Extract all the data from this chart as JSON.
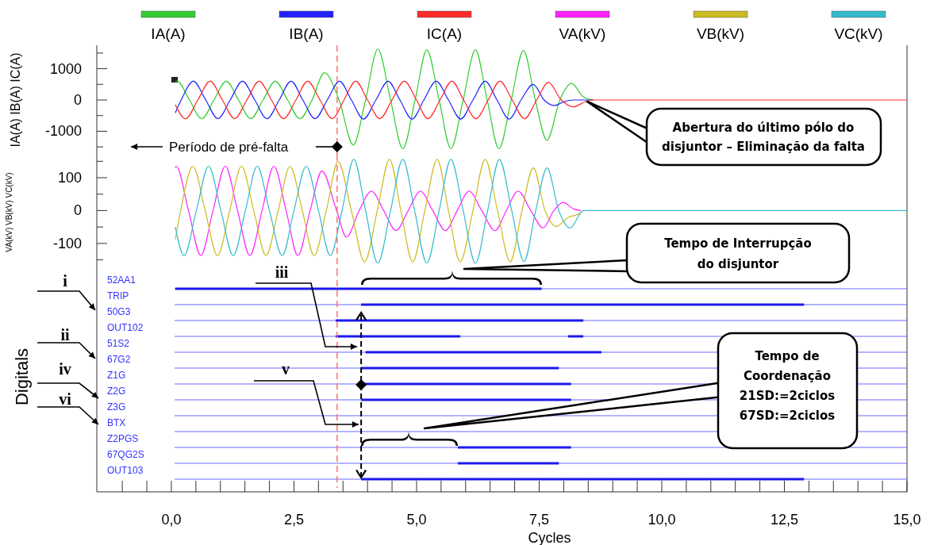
{
  "chart_data": [
    {
      "type": "line",
      "ylabel": "IA(A) IB(A) IC(A)",
      "legend": "top",
      "tick_labels": "y",
      "xlim": [
        -1.52,
        15
      ],
      "ylim": [
        -1750,
        1750
      ],
      "yticks": [
        {
          "value": -1500,
          "label": null
        },
        -1000,
        {
          "value": -500,
          "label": null
        },
        0,
        {
          "value": 500,
          "label": null
        },
        1000,
        {
          "value": 1500,
          "label": null
        }
      ],
      "ref_lines": [
        {
          "axis": "x",
          "value": 3.38,
          "color": "#ff7070",
          "line_style": "dashed"
        }
      ],
      "annotations": [
        "Período de pré-falta",
        "Abertura do último pólo do disjuntor – Eliminação da falta"
      ],
      "series": [
        {
          "name": "IA(A)",
          "color": "#33cc33",
          "x": [
            0.08,
            0.12,
            0.37,
            0.62,
            0.87,
            1.12,
            1.37,
            1.62,
            1.87,
            2.12,
            2.37,
            2.62,
            2.87,
            3.12,
            3.42,
            3.71,
            3.96,
            4.21,
            4.47,
            4.72,
            4.97,
            5.21,
            5.46,
            5.7,
            5.95,
            6.2,
            6.44,
            6.68,
            6.93,
            7.18,
            7.42,
            7.66,
            7.92,
            8.16,
            8.4,
            8.6
          ],
          "values": [
            590,
            600,
            0,
            -600,
            0,
            600,
            0,
            -600,
            0,
            600,
            0,
            -600,
            0,
            870,
            0,
            -1440,
            0,
            1630,
            0,
            -1560,
            0,
            1600,
            0,
            -1560,
            0,
            1600,
            0,
            -1560,
            0,
            1580,
            0,
            -1290,
            0,
            530,
            100,
            0
          ]
        },
        {
          "name": "IB(A)",
          "color": "#2222ff",
          "x": [
            0.08,
            0.2,
            0.45,
            0.7,
            0.95,
            1.2,
            1.45,
            1.7,
            1.95,
            2.2,
            2.44,
            2.68,
            2.93,
            3.18,
            3.43,
            3.67,
            3.92,
            4.17,
            4.42,
            4.66,
            4.91,
            5.15,
            5.4,
            5.65,
            5.9,
            6.15,
            6.4,
            6.64,
            6.89,
            7.13,
            7.38,
            7.6,
            7.81,
            8.0,
            8.2,
            8.6
          ],
          "values": [
            -410,
            0,
            600,
            0,
            -600,
            0,
            600,
            0,
            -600,
            0,
            600,
            0,
            -600,
            0,
            600,
            0,
            -610,
            0,
            600,
            0,
            -610,
            0,
            600,
            0,
            -610,
            0,
            600,
            0,
            -610,
            0,
            500,
            0,
            -180,
            -60,
            0,
            0
          ]
        },
        {
          "name": "IC(A)",
          "color": "#ff2a2a",
          "x": [
            0.08,
            0.29,
            0.54,
            0.79,
            1.04,
            1.29,
            1.54,
            1.79,
            2.04,
            2.29,
            2.54,
            2.78,
            3.03,
            3.28,
            3.52,
            3.76,
            4.0,
            4.25,
            4.5,
            4.75,
            5.0,
            5.23,
            5.48,
            5.72,
            5.96,
            6.21,
            6.46,
            6.7,
            6.95,
            7.2,
            7.45,
            7.69,
            7.95,
            8.2,
            8.45,
            8.6,
            15
          ],
          "values": [
            -150,
            -600,
            0,
            600,
            0,
            -600,
            0,
            600,
            0,
            -600,
            0,
            600,
            0,
            -600,
            0,
            600,
            0,
            -600,
            0,
            600,
            0,
            -600,
            0,
            600,
            0,
            -600,
            0,
            600,
            0,
            -600,
            0,
            560,
            0,
            -220,
            -50,
            0,
            0
          ]
        }
      ]
    },
    {
      "type": "line",
      "ylabel": "VA(kV) VB(kV) VC(kV)",
      "legend": "top",
      "tick_labels": "y",
      "xlim": [
        -1.52,
        15
      ],
      "ylim": [
        -180,
        170
      ],
      "yticks": [
        {
          "value": -150,
          "label": null
        },
        -100,
        {
          "value": -50,
          "label": null
        },
        0,
        {
          "value": 50,
          "label": null
        },
        100,
        {
          "value": 150,
          "label": null
        }
      ],
      "ref_lines": [
        {
          "axis": "x",
          "value": 3.38,
          "color": "#ff7070",
          "line_style": "dashed"
        }
      ],
      "series": [
        {
          "name": "VA(kV)",
          "color": "#ff22ff",
          "x": [
            0.08,
            0.1,
            0.35,
            0.6,
            0.85,
            1.1,
            1.35,
            1.6,
            1.85,
            2.09,
            2.34,
            2.58,
            2.83,
            3.07,
            3.37,
            3.57,
            3.83,
            4.08,
            4.33,
            4.58,
            4.83,
            5.08,
            5.33,
            5.59,
            5.83,
            6.07,
            6.33,
            6.6,
            6.83,
            7.07,
            7.33,
            7.58,
            7.8,
            7.99,
            8.2,
            8.35
          ],
          "values": [
            130,
            135,
            0,
            -137,
            0,
            135,
            0,
            -137,
            0,
            135,
            0,
            -137,
            0,
            120,
            0,
            -81,
            0,
            59,
            0,
            -61,
            0,
            59,
            0,
            -61,
            0,
            59,
            0,
            -61,
            0,
            59,
            0,
            -53,
            0,
            25,
            5,
            0
          ]
        },
        {
          "name": "VB(kV)",
          "color": "#ccbb22",
          "x": [
            0.08,
            0.19,
            0.44,
            0.69,
            0.94,
            1.19,
            1.43,
            1.68,
            1.93,
            2.18,
            2.42,
            2.67,
            2.91,
            3.16,
            3.4,
            3.67,
            3.94,
            4.2,
            4.45,
            4.68,
            4.92,
            5.17,
            5.42,
            5.65,
            5.89,
            6.15,
            6.4,
            6.65,
            6.91,
            7.15,
            7.38,
            7.62,
            7.85,
            8.1,
            8.28,
            8.4
          ],
          "values": [
            -88,
            0,
            135,
            0,
            -137,
            0,
            135,
            0,
            -137,
            0,
            135,
            0,
            -137,
            0,
            149,
            0,
            -156,
            0,
            156,
            0,
            -156,
            0,
            156,
            0,
            -156,
            0,
            156,
            0,
            -156,
            0,
            130,
            0,
            -48,
            -20,
            -12,
            0
          ]
        },
        {
          "name": "VC(kV)",
          "color": "#33bbcc",
          "x": [
            0.08,
            0.26,
            0.51,
            0.76,
            1.01,
            1.26,
            1.51,
            1.75,
            2.0,
            2.26,
            2.5,
            2.75,
            3.0,
            3.24,
            3.48,
            3.72,
            3.96,
            4.21,
            4.47,
            4.72,
            4.96,
            5.21,
            5.46,
            5.7,
            5.95,
            6.2,
            6.45,
            6.69,
            6.94,
            7.19,
            7.43,
            7.66,
            7.9,
            8.13,
            8.4,
            15
          ],
          "values": [
            -50,
            -137,
            0,
            135,
            0,
            -137,
            0,
            135,
            0,
            -137,
            0,
            135,
            0,
            -137,
            0,
            156,
            0,
            -160,
            0,
            156,
            0,
            -160,
            0,
            156,
            0,
            -160,
            0,
            156,
            0,
            -155,
            0,
            130,
            0,
            -53,
            0,
            0
          ]
        }
      ]
    },
    {
      "type": "bar",
      "orientation": "horizontal",
      "ylabel": "Digitals",
      "xlabel": "Cycles",
      "grid": "y",
      "xlim": [
        -1.52,
        15
      ],
      "xticks": [
        {
          "value": -1,
          "label": null
        },
        {
          "value": -0.5,
          "label": null
        },
        {
          "value": 0,
          "label": "0,0"
        },
        {
          "value": 0.5,
          "label": null
        },
        {
          "value": 1,
          "label": null
        },
        {
          "value": 1.5,
          "label": null
        },
        {
          "value": 2,
          "label": null
        },
        {
          "value": 2.5,
          "label": "2,5"
        },
        {
          "value": 3,
          "label": null
        },
        {
          "value": 3.5,
          "label": null
        },
        {
          "value": 4,
          "label": null
        },
        {
          "value": 4.5,
          "label": null
        },
        {
          "value": 5,
          "label": "5,0"
        },
        {
          "value": 5.5,
          "label": null
        },
        {
          "value": 6,
          "label": null
        },
        {
          "value": 6.5,
          "label": null
        },
        {
          "value": 7,
          "label": null
        },
        {
          "value": 7.5,
          "label": "7,5"
        },
        {
          "value": 8,
          "label": null
        },
        {
          "value": 8.5,
          "label": null
        },
        {
          "value": 9,
          "label": null
        },
        {
          "value": 9.5,
          "label": null
        },
        {
          "value": 10,
          "label": "10,0"
        },
        {
          "value": 10.5,
          "label": null
        },
        {
          "value": 11,
          "label": null
        },
        {
          "value": 11.5,
          "label": null
        },
        {
          "value": 12,
          "label": null
        },
        {
          "value": 12.5,
          "label": "12,5"
        },
        {
          "value": 13,
          "label": null
        },
        {
          "value": 13.5,
          "label": null
        },
        {
          "value": 14,
          "label": null
        },
        {
          "value": 14.5,
          "label": null
        },
        {
          "value": 15,
          "label": "15,0"
        }
      ],
      "categories": [
        "52AA1",
        "TRIP",
        "50G3",
        "OUT102",
        "51S2",
        "67G2",
        "Z1G",
        "Z2G",
        "Z3G",
        "BTX",
        "Z2PGS",
        "67QG2S",
        "OUT103"
      ],
      "ref_lines": [
        {
          "axis": "x",
          "value": 3.38,
          "color": "#ff7070",
          "line_style": "dashed"
        }
      ],
      "annotations": [
        "Tempo de Interrupção do disjuntor",
        "Tempo de Coordenação 21SD:=2ciclos 67SD:=2ciclos",
        "i",
        "ii",
        "iii",
        "iv",
        "v",
        "vi"
      ],
      "series": [
        {
          "color": "#1a1aee",
          "base": [
            0.08,
            3.87,
            3.35,
            3.35,
            3.96,
            3.87,
            3.87,
            3.87,
            null,
            null,
            5.84,
            5.84,
            3.87
          ],
          "values": [
            7.47,
            9.03,
            5.05,
            2.54,
            4.81,
            4.03,
            4.28,
            4.28,
            null,
            null,
            2.31,
            2.06,
            9.03
          ]
        },
        {
          "color": "#1a1aee",
          "base": [
            null,
            null,
            null,
            8.09,
            null,
            null,
            null,
            null,
            null,
            null,
            null,
            null,
            null
          ],
          "values": [
            null,
            null,
            null,
            0.31,
            null,
            null,
            null,
            null,
            null,
            null,
            null,
            null,
            null
          ]
        }
      ]
    }
  ]
}
